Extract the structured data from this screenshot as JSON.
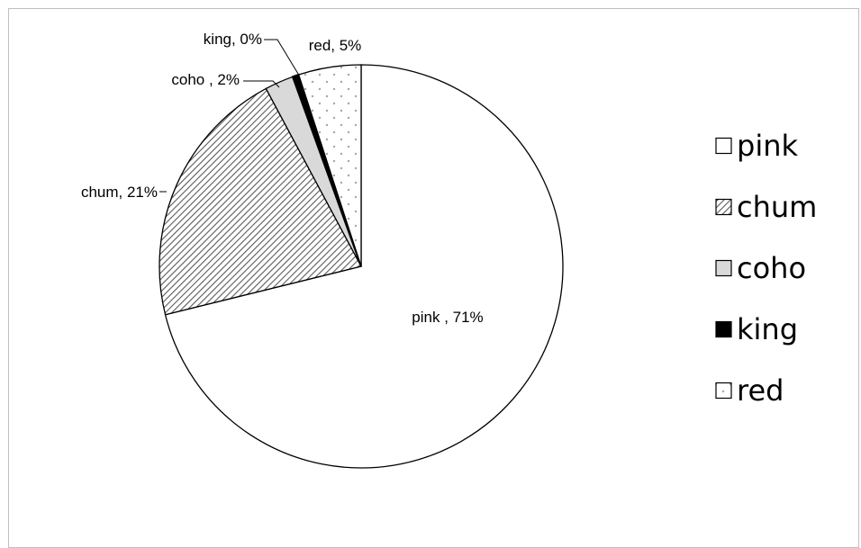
{
  "chart_data": {
    "type": "pie",
    "title": "",
    "slices": [
      {
        "name": "pink",
        "label": "pink , 71%",
        "value": 71,
        "fill": "#ffffff",
        "pattern": "none"
      },
      {
        "name": "chum",
        "label": "chum, 21%",
        "value": 21,
        "fill": "#808080",
        "pattern": "diagonal-hatch"
      },
      {
        "name": "coho",
        "label": "coho , 2%",
        "value": 2.3,
        "fill": "#d9d9d9",
        "pattern": "none"
      },
      {
        "name": "king",
        "label": "king, 0%",
        "value": 0.5,
        "fill": "#000000",
        "pattern": "none"
      },
      {
        "name": "red",
        "label": "red, 5%",
        "value": 5,
        "fill": "#ffffff",
        "pattern": "dots"
      }
    ],
    "legend": {
      "position": "right",
      "entries": [
        "pink",
        "chum",
        "coho",
        "king",
        "red"
      ]
    }
  },
  "colors": {
    "outline": "#000000",
    "frame_border": "#bfbfbf",
    "dot_color": "#a6a6a6"
  }
}
